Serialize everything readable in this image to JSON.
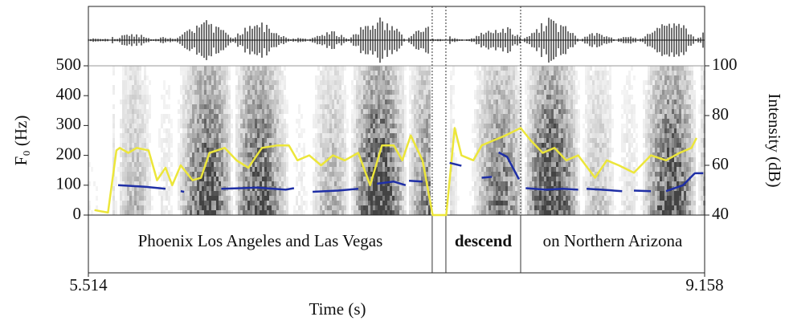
{
  "chart_data": {
    "type": "line",
    "xlabel": "Time (s)",
    "ylabel": "F₀ (Hz)",
    "y2label": "Intensity (dB)",
    "xlim": [
      5.514,
      9.158
    ],
    "xticks": [
      5.514,
      9.158
    ],
    "ylim": [
      0,
      500
    ],
    "yticks": [
      0,
      100,
      200,
      300,
      400,
      500
    ],
    "y2lim": [
      40,
      100
    ],
    "y2ticks": [
      40,
      60,
      80,
      100
    ],
    "series": [
      {
        "color": "#ece63a",
        "axis": "y2",
        "x": [
          5.55,
          5.63,
          5.68,
          5.7,
          5.75,
          5.8,
          5.87,
          5.92,
          5.97,
          6.01,
          6.06,
          6.13,
          6.18,
          6.23,
          6.32,
          6.39,
          6.46,
          6.54,
          6.63,
          6.7,
          6.75,
          6.82,
          6.89,
          6.96,
          7.03,
          7.11,
          7.18,
          7.25,
          7.32,
          7.37,
          7.42,
          7.49,
          7.55,
          7.63,
          7.68,
          7.72,
          7.79,
          7.84,
          7.91,
          7.98,
          8.07,
          8.13,
          8.2,
          8.27,
          8.34,
          8.41,
          8.51,
          8.58,
          8.65,
          8.74,
          8.84,
          8.93,
          9.01,
          9.08,
          9.11
        ],
        "values": [
          42,
          41,
          66,
          67,
          65,
          67,
          66,
          54,
          59,
          52,
          60,
          54,
          55,
          65,
          67,
          62,
          59,
          67,
          68,
          68,
          62,
          64,
          60,
          64,
          62,
          65,
          52,
          68,
          68,
          62,
          72,
          62,
          40,
          40,
          75,
          64,
          62,
          68,
          70,
          72,
          75,
          70,
          65,
          67,
          62,
          64,
          55,
          62,
          60,
          57,
          64,
          62,
          65,
          67,
          71
        ]
      },
      {
        "color": "#1f2fa6",
        "x": [
          5.69,
          5.85,
          5.97,
          null,
          6.06,
          6.08,
          null,
          6.3,
          6.42,
          6.51,
          6.61,
          6.68,
          6.73,
          null,
          6.84,
          6.99,
          7.11,
          null,
          7.22,
          7.32,
          7.39,
          null,
          7.41,
          7.49,
          null,
          7.65,
          7.72,
          null,
          7.84,
          7.9,
          null,
          7.94,
          7.99,
          8.06,
          null,
          8.1,
          8.22,
          8.32,
          8.41,
          null,
          8.46,
          8.55,
          8.67,
          null,
          8.74,
          8.84,
          null,
          8.93,
          9.03,
          9.1,
          9.15
        ],
        "values": [
          100,
          95,
          88,
          null,
          80,
          78,
          null,
          88,
          90,
          92,
          88,
          85,
          90,
          null,
          78,
          82,
          88,
          null,
          105,
          112,
          100,
          null,
          115,
          112,
          null,
          175,
          165,
          null,
          125,
          128,
          null,
          210,
          195,
          120,
          null,
          90,
          85,
          88,
          85,
          null,
          88,
          85,
          80,
          null,
          82,
          80,
          null,
          80,
          100,
          140,
          140
        ]
      }
    ],
    "textgrid": {
      "boundaries": [
        7.547,
        7.628,
        8.07
      ],
      "labels": [
        {
          "text": "Phoenix Los Angeles and Las Vegas",
          "start": 5.514,
          "end": 7.547
        },
        {
          "text": "descend",
          "start": 7.628,
          "end": 8.07,
          "weight": "bold"
        },
        {
          "text": "on Northern Arizona",
          "start": 8.07,
          "end": 9.158
        }
      ]
    }
  }
}
